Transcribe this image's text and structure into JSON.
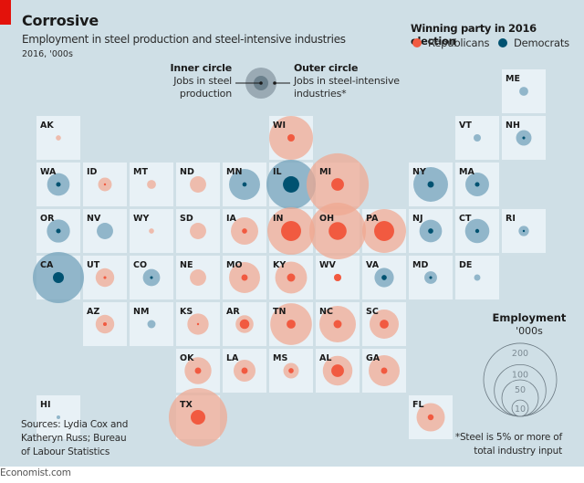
{
  "header": {
    "title": "Corrosive",
    "subtitle": "Employment in steel production and steel-intensive industries",
    "units": "2016, '000s"
  },
  "party_legend": {
    "title": "Winning party in 2016 election",
    "items": [
      {
        "label": "Republicans",
        "color": "#f15a40"
      },
      {
        "label": "Democrats",
        "color": "#005271"
      }
    ]
  },
  "circle_key": {
    "inner_title": "Inner circle",
    "inner_desc_1": "Jobs in steel",
    "inner_desc_2": "production",
    "outer_title": "Outer circle",
    "outer_desc_1": "Jobs in steel-intensive",
    "outer_desc_2": "industries*"
  },
  "size_legend": {
    "title": "Employment",
    "units": "'000s",
    "values": [
      200,
      100,
      50,
      10
    ]
  },
  "colors": {
    "rep_inner": "#f15a40",
    "rep_outer": "#f0a890",
    "dem_inner": "#005271",
    "dem_outer": "#6f9fb8",
    "cell": "#e8f1f6",
    "background": "#cfdfe6",
    "accent": "#e3120b"
  },
  "sources": [
    "Sources: Lydia Cox and",
    "Katheryn Russ; Bureau",
    "of Labour Statistics"
  ],
  "footnote": [
    "*Steel is 5% or more of",
    "total industry input"
  ],
  "footer": "Economist.com",
  "chart_data": {
    "type": "tile-grid-bubble",
    "title": "Corrosive",
    "subtitle": "Employment in steel production and steel-intensive industries",
    "units": "2016, thousands of jobs",
    "series_note": "inner = jobs in steel production; outer = jobs in steel-intensive industries (steel is 5% or more of total industry input)",
    "legend_placement": "top-right",
    "states": [
      {
        "code": "ME",
        "col": 10,
        "row": 0,
        "party": "D",
        "inner": 0,
        "outer": 3
      },
      {
        "code": "AK",
        "col": 0,
        "row": 1,
        "party": "R",
        "inner": 0,
        "outer": 1
      },
      {
        "code": "WI",
        "col": 5,
        "row": 1,
        "party": "R",
        "inner": 2,
        "outer": 72
      },
      {
        "code": "VT",
        "col": 9,
        "row": 1,
        "party": "D",
        "inner": 0,
        "outer": 2
      },
      {
        "code": "NH",
        "col": 10,
        "row": 1,
        "party": "D",
        "inner": 0.3,
        "outer": 9
      },
      {
        "code": "WA",
        "col": 0,
        "row": 2,
        "party": "D",
        "inner": 0.8,
        "outer": 19
      },
      {
        "code": "ID",
        "col": 1,
        "row": 2,
        "party": "R",
        "inner": 0.1,
        "outer": 7
      },
      {
        "code": "MT",
        "col": 2,
        "row": 2,
        "party": "R",
        "inner": 0,
        "outer": 3
      },
      {
        "code": "ND",
        "col": 3,
        "row": 2,
        "party": "R",
        "inner": 0,
        "outer": 10
      },
      {
        "code": "MN",
        "col": 4,
        "row": 2,
        "party": "D",
        "inner": 0.7,
        "outer": 36
      },
      {
        "code": "IL",
        "col": 5,
        "row": 2,
        "party": "D",
        "inner": 10,
        "outer": 91
      },
      {
        "code": "MI",
        "col": 6,
        "row": 2,
        "party": "R",
        "inner": 6,
        "outer": 145
      },
      {
        "code": "NY",
        "col": 8,
        "row": 2,
        "party": "D",
        "inner": 1.5,
        "outer": 45
      },
      {
        "code": "MA",
        "col": 9,
        "row": 2,
        "party": "D",
        "inner": 0.8,
        "outer": 21
      },
      {
        "code": "OR",
        "col": 0,
        "row": 3,
        "party": "D",
        "inner": 0.8,
        "outer": 20
      },
      {
        "code": "NV",
        "col": 1,
        "row": 3,
        "party": "D",
        "inner": 0,
        "outer": 10
      },
      {
        "code": "WY",
        "col": 2,
        "row": 3,
        "party": "R",
        "inner": 0,
        "outer": 1
      },
      {
        "code": "SD",
        "col": 3,
        "row": 3,
        "party": "R",
        "inner": 0,
        "outer": 10
      },
      {
        "code": "IA",
        "col": 4,
        "row": 3,
        "party": "R",
        "inner": 1,
        "outer": 28
      },
      {
        "code": "IN",
        "col": 5,
        "row": 3,
        "party": "R",
        "inner": 15,
        "outer": 84
      },
      {
        "code": "OH",
        "col": 6,
        "row": 3,
        "party": "R",
        "inner": 12,
        "outer": 120
      },
      {
        "code": "PA",
        "col": 7,
        "row": 3,
        "party": "R",
        "inner": 15,
        "outer": 72
      },
      {
        "code": "NJ",
        "col": 8,
        "row": 3,
        "party": "D",
        "inner": 1,
        "outer": 19
      },
      {
        "code": "CT",
        "col": 9,
        "row": 3,
        "party": "D",
        "inner": 0.6,
        "outer": 22
      },
      {
        "code": "RI",
        "col": 10,
        "row": 3,
        "party": "D",
        "inner": 0.1,
        "outer": 4
      },
      {
        "code": "CA",
        "col": 0,
        "row": 4,
        "party": "D",
        "inner": 4.5,
        "outer": 98
      },
      {
        "code": "UT",
        "col": 1,
        "row": 4,
        "party": "R",
        "inner": 0.3,
        "outer": 13
      },
      {
        "code": "CO",
        "col": 2,
        "row": 4,
        "party": "D",
        "inner": 0.3,
        "outer": 11
      },
      {
        "code": "NE",
        "col": 3,
        "row": 4,
        "party": "R",
        "inner": 0,
        "outer": 10
      },
      {
        "code": "MO",
        "col": 4,
        "row": 4,
        "party": "R",
        "inner": 1.5,
        "outer": 36
      },
      {
        "code": "KY",
        "col": 5,
        "row": 4,
        "party": "R",
        "inner": 2.5,
        "outer": 38
      },
      {
        "code": "WV",
        "col": 6,
        "row": 4,
        "party": "R",
        "inner": 2,
        "outer": 2
      },
      {
        "code": "VA",
        "col": 7,
        "row": 4,
        "party": "D",
        "inner": 1,
        "outer": 14
      },
      {
        "code": "MD",
        "col": 8,
        "row": 4,
        "party": "D",
        "inner": 0.3,
        "outer": 6
      },
      {
        "code": "DE",
        "col": 9,
        "row": 4,
        "party": "D",
        "inner": 0,
        "outer": 1.5
      },
      {
        "code": "AZ",
        "col": 1,
        "row": 5,
        "party": "R",
        "inner": 0.5,
        "outer": 13
      },
      {
        "code": "NM",
        "col": 2,
        "row": 5,
        "party": "D",
        "inner": 0,
        "outer": 2.5
      },
      {
        "code": "KS",
        "col": 3,
        "row": 5,
        "party": "R",
        "inner": 0.1,
        "outer": 17
      },
      {
        "code": "AR",
        "col": 4,
        "row": 5,
        "party": "R",
        "inner": 3.5,
        "outer": 12
      },
      {
        "code": "TN",
        "col": 5,
        "row": 5,
        "party": "R",
        "inner": 3,
        "outer": 65
      },
      {
        "code": "NC",
        "col": 6,
        "row": 5,
        "party": "R",
        "inner": 2.5,
        "outer": 50
      },
      {
        "code": "SC",
        "col": 7,
        "row": 5,
        "party": "R",
        "inner": 3,
        "outer": 32
      },
      {
        "code": "OK",
        "col": 3,
        "row": 6,
        "party": "R",
        "inner": 1.5,
        "outer": 27
      },
      {
        "code": "LA",
        "col": 4,
        "row": 6,
        "party": "R",
        "inner": 1.5,
        "outer": 18
      },
      {
        "code": "MS",
        "col": 5,
        "row": 6,
        "party": "R",
        "inner": 1,
        "outer": 9
      },
      {
        "code": "AL",
        "col": 6,
        "row": 6,
        "party": "R",
        "inner": 6,
        "outer": 33
      },
      {
        "code": "GA",
        "col": 7,
        "row": 6,
        "party": "R",
        "inner": 1.5,
        "outer": 36
      },
      {
        "code": "HI",
        "col": 0,
        "row": 7,
        "party": "D",
        "inner": 0,
        "outer": 0.5
      },
      {
        "code": "TX",
        "col": 3,
        "row": 7,
        "party": "R",
        "inner": 8,
        "outer": 128
      },
      {
        "code": "FL",
        "col": 8,
        "row": 7,
        "party": "R",
        "inner": 1.3,
        "outer": 30
      }
    ]
  }
}
